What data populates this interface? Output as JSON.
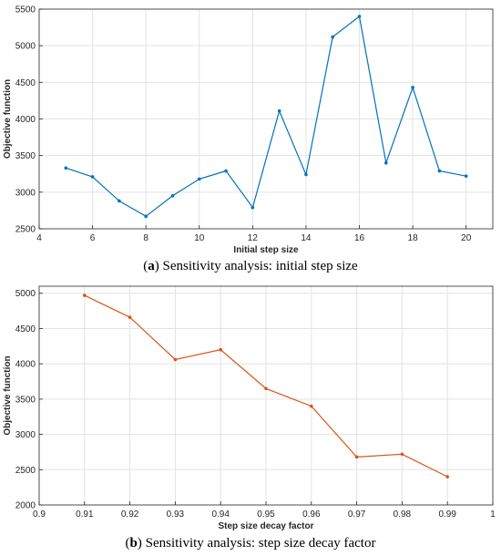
{
  "chart_data": [
    {
      "type": "line",
      "caption_letter": "a",
      "caption_text": "Sensitivity analysis: initial step size",
      "xlabel": "Initial step size",
      "ylabel": "Objective function",
      "xlim": [
        4,
        21
      ],
      "ylim": [
        2500,
        5500
      ],
      "xticks": [
        4,
        6,
        8,
        10,
        12,
        14,
        16,
        18,
        20
      ],
      "yticks": [
        2500,
        3000,
        3500,
        4000,
        4500,
        5000,
        5500
      ],
      "grid": true,
      "color": "#0072BD",
      "x": [
        5,
        6,
        7,
        8,
        9,
        10,
        11,
        12,
        13,
        14,
        15,
        16,
        17,
        18,
        19,
        20
      ],
      "values": [
        3330,
        3210,
        2880,
        2670,
        2950,
        3180,
        3290,
        2790,
        4110,
        3240,
        5120,
        5400,
        3400,
        4430,
        3290,
        3220
      ]
    },
    {
      "type": "line",
      "caption_letter": "b",
      "caption_text": "Sensitivity analysis: step size decay factor",
      "xlabel": "Step size decay factor",
      "ylabel": "Objective function",
      "xlim": [
        0.9,
        1.0
      ],
      "ylim": [
        2000,
        5100
      ],
      "xticks": [
        0.9,
        0.91,
        0.92,
        0.93,
        0.94,
        0.95,
        0.96,
        0.97,
        0.98,
        0.99,
        1
      ],
      "yticks": [
        2000,
        2500,
        3000,
        3500,
        4000,
        4500,
        5000
      ],
      "grid": true,
      "color": "#D95319",
      "x": [
        0.91,
        0.92,
        0.93,
        0.94,
        0.95,
        0.96,
        0.97,
        0.98,
        0.99
      ],
      "values": [
        4970,
        4660,
        4060,
        4200,
        3650,
        3400,
        2680,
        2720,
        2400
      ]
    }
  ]
}
